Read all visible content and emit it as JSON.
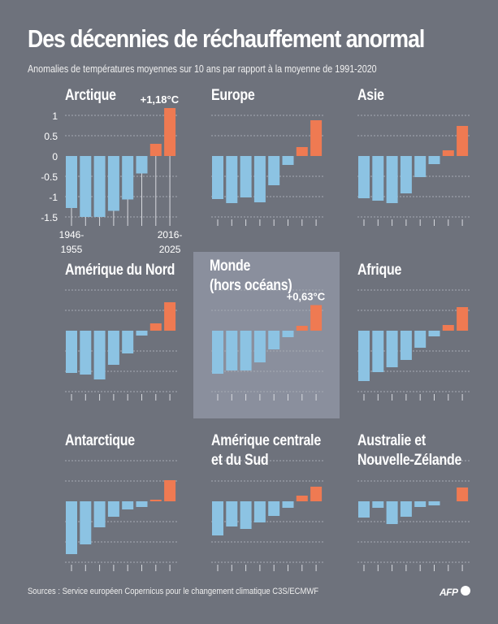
{
  "title": "Des décennies de réchauffement anormal",
  "subtitle": "Anomalies de températures moyennes sur 10 ans par rapport à la moyenne de 1991-2020",
  "source": "Sources : Service européen Copernicus pour le changement climatique C3S/ECMWF",
  "logo": "AFP",
  "colors": {
    "background": "#6e727c",
    "highlight": "#8a8f9d",
    "negative": "#8cc3e3",
    "positive": "#ef7a52"
  },
  "chart_data": [
    {
      "type": "bar",
      "title": "Arctique",
      "unit": "°C",
      "ylim": [
        -1.5,
        1.18
      ],
      "yticks": [
        "1",
        "0.5",
        "0",
        "-0.5",
        "-1",
        "-1.5"
      ],
      "first_label": "1946-\n1955",
      "last_label": "2016-\n2025",
      "annotation": "+1,18°C",
      "grid": true,
      "values": [
        -1.28,
        -1.5,
        -1.5,
        -1.35,
        -1.07,
        -0.43,
        0.3,
        1.18
      ]
    },
    {
      "type": "bar",
      "title": "Europe",
      "grid": true,
      "values": [
        -1.06,
        -1.16,
        -1.02,
        -1.14,
        -0.72,
        -0.22,
        0.22,
        0.88
      ]
    },
    {
      "type": "bar",
      "title": "Asie",
      "grid": true,
      "values": [
        -1.04,
        -1.1,
        -1.16,
        -0.92,
        -0.52,
        -0.2,
        0.14,
        0.74
      ]
    },
    {
      "type": "bar",
      "title": "Amérique du Nord",
      "grid": true,
      "values": [
        -1.04,
        -1.08,
        -1.2,
        -0.84,
        -0.56,
        -0.12,
        0.18,
        0.7
      ]
    },
    {
      "type": "bar",
      "title": "Monde\n(hors océans)",
      "annotation": "+0,63°C",
      "highlight": true,
      "grid": true,
      "values": [
        -1.06,
        -0.98,
        -0.98,
        -0.78,
        -0.46,
        -0.16,
        0.12,
        0.63
      ]
    },
    {
      "type": "bar",
      "title": "Afrique",
      "grid": true,
      "values": [
        -1.24,
        -1.02,
        -0.9,
        -0.72,
        -0.42,
        -0.14,
        0.14,
        0.58
      ]
    },
    {
      "type": "bar",
      "title": "Antarctique",
      "grid": true,
      "values": [
        -1.3,
        -1.06,
        -0.64,
        -0.38,
        -0.2,
        -0.14,
        0.04,
        0.52
      ]
    },
    {
      "type": "bar",
      "title": "Amérique centrale\net du Sud",
      "grid": true,
      "values": [
        -0.84,
        -0.62,
        -0.68,
        -0.52,
        -0.36,
        -0.16,
        0.14,
        0.36
      ]
    },
    {
      "type": "bar",
      "title": "Australie et\nNouvelle-Zélande",
      "grid": true,
      "values": [
        -0.4,
        -0.16,
        -0.56,
        -0.38,
        -0.14,
        -0.1,
        0.0,
        0.34
      ]
    }
  ]
}
